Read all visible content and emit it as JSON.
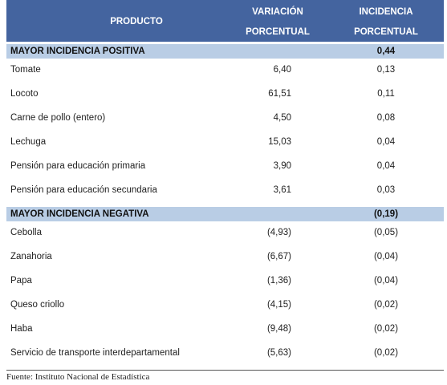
{
  "header": {
    "product": "PRODUCTO",
    "variation": [
      "VARIACIÓN",
      "PORCENTUAL"
    ],
    "incidence": [
      "INCIDENCIA",
      "PORCENTUAL"
    ]
  },
  "sections": [
    {
      "title": "MAYOR INCIDENCIA POSITIVA",
      "incidence": "0,44",
      "rows": [
        [
          "Tomate",
          "6,40",
          "0,13"
        ],
        [
          "Locoto",
          "61,51",
          "0,11"
        ],
        [
          "Carne de pollo (entero)",
          "4,50",
          "0,08"
        ],
        [
          "Lechuga",
          "15,03",
          "0,04"
        ],
        [
          "Pensión para educación primaria",
          "3,90",
          "0,04"
        ],
        [
          "Pensión para educación secundaria",
          "3,61",
          "0,03"
        ]
      ]
    },
    {
      "title": "MAYOR INCIDENCIA NEGATIVA",
      "incidence": "(0,19)",
      "rows": [
        [
          "Cebolla",
          "(4,93)",
          "(0,05)"
        ],
        [
          "Zanahoria",
          "(6,67)",
          "(0,04)"
        ],
        [
          "Papa",
          "(1,36)",
          "(0,04)"
        ],
        [
          "Queso criollo",
          "(4,15)",
          "(0,02)"
        ],
        [
          "Haba",
          "(9,48)",
          "(0,02)"
        ],
        [
          "Servicio de transporte interdepartamental",
          "(5,63)",
          "(0,02)"
        ]
      ]
    }
  ],
  "source": "Fuente: Instituto Nacional de Estadística"
}
